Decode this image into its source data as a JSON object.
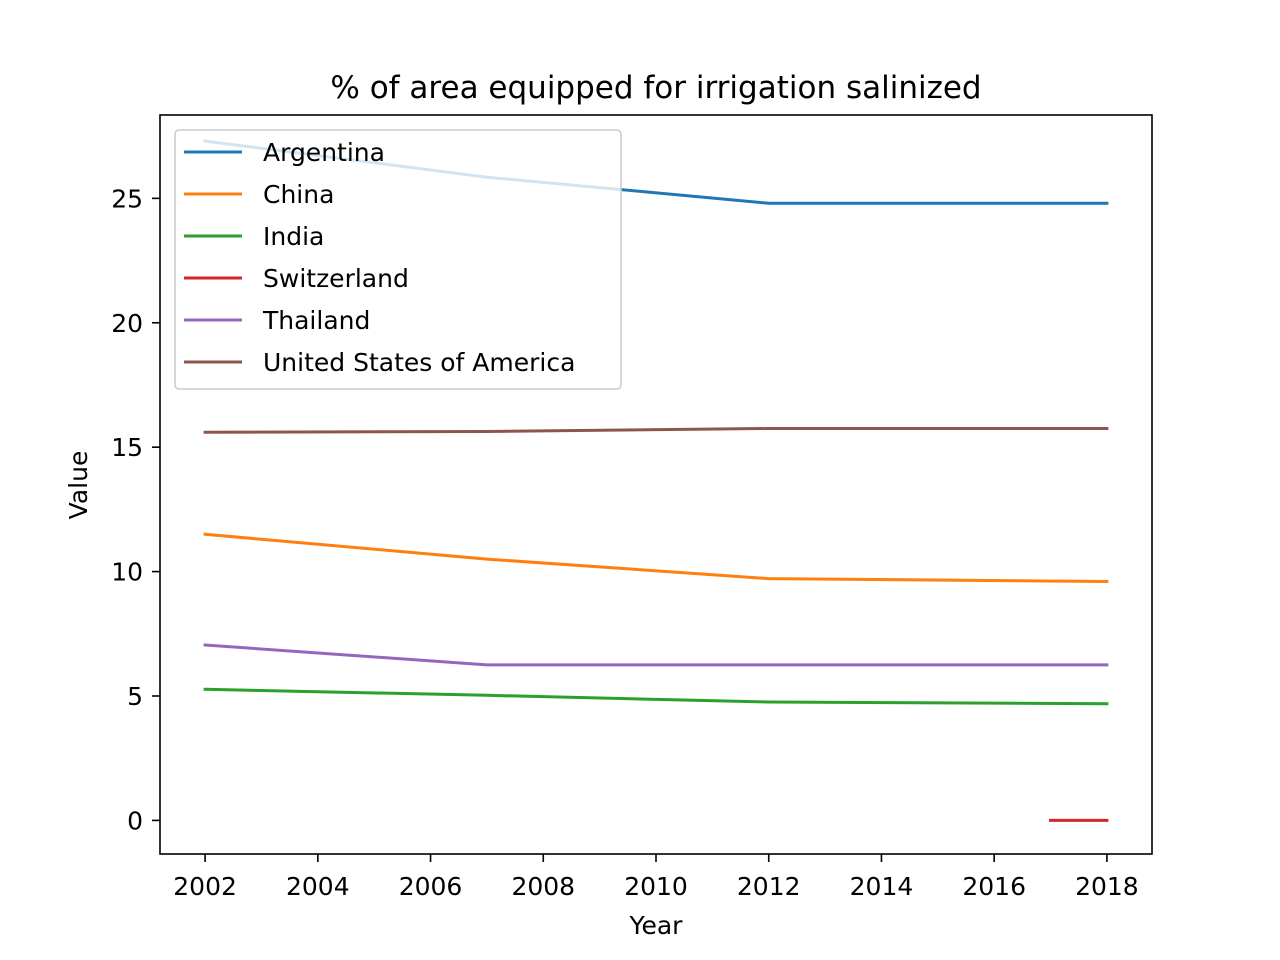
{
  "chart_data": {
    "type": "line",
    "title": "% of area equipped for irrigation salinized",
    "xlabel": "Year",
    "ylabel": "Value",
    "xlim": [
      2001.2,
      2018.8
    ],
    "ylim": [
      -1.35,
      28.35
    ],
    "xticks": [
      2002,
      2004,
      2006,
      2008,
      2010,
      2012,
      2014,
      2016,
      2018
    ],
    "yticks": [
      0,
      5,
      10,
      15,
      20,
      25
    ],
    "grid": false,
    "legend_position": "upper-left",
    "series": [
      {
        "name": "Argentina",
        "color": "#1f77b4",
        "points": [
          [
            2002,
            27.3
          ],
          [
            2007,
            25.85
          ],
          [
            2012,
            24.8
          ],
          [
            2018,
            24.8
          ]
        ]
      },
      {
        "name": "China",
        "color": "#ff7f0e",
        "points": [
          [
            2002,
            11.5
          ],
          [
            2007,
            10.5
          ],
          [
            2012,
            9.72
          ],
          [
            2018,
            9.6
          ]
        ]
      },
      {
        "name": "India",
        "color": "#2ca02c",
        "points": [
          [
            2002,
            5.27
          ],
          [
            2007,
            5.03
          ],
          [
            2012,
            4.76
          ],
          [
            2018,
            4.69
          ]
        ]
      },
      {
        "name": "Switzerland",
        "color": "#d62728",
        "points": [
          [
            2017,
            0.0
          ],
          [
            2018,
            0.0
          ]
        ]
      },
      {
        "name": "Thailand",
        "color": "#9467bd",
        "points": [
          [
            2002,
            7.05
          ],
          [
            2007,
            6.25
          ],
          [
            2012,
            6.25
          ],
          [
            2018,
            6.25
          ]
        ]
      },
      {
        "name": "United States of America",
        "color": "#8c564b",
        "points": [
          [
            2002,
            15.6
          ],
          [
            2007,
            15.63
          ],
          [
            2012,
            15.75
          ],
          [
            2018,
            15.75
          ]
        ]
      }
    ]
  }
}
